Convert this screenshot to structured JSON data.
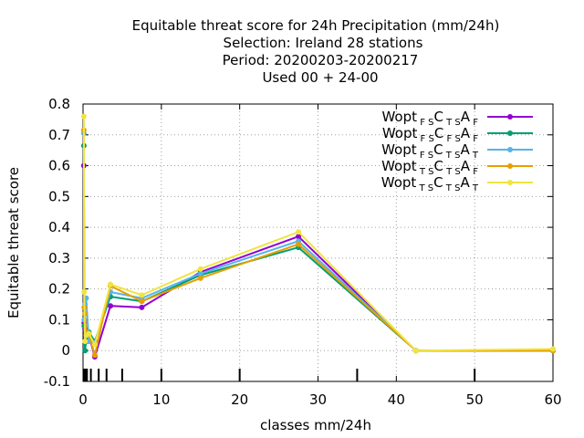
{
  "chart_data": {
    "type": "line",
    "title_lines": [
      "Equitable threat score  for 24h Precipitation (mm/24h)",
      "Selection: Ireland      28 stations",
      "Period: 20200203-20200217",
      "Used  00 + 24-00"
    ],
    "xlabel": "classes mm/24h",
    "ylabel": "Equitable threat score",
    "xlim": [
      0,
      60
    ],
    "ylim": [
      -0.1,
      0.8
    ],
    "xticks": [
      0,
      10,
      20,
      30,
      40,
      50,
      60
    ],
    "yticks": [
      -0.1,
      0,
      0.1,
      0.2,
      0.3,
      0.4,
      0.5,
      0.6,
      0.7,
      0.8
    ],
    "ytick_labels": [
      "-0.1",
      "0",
      "0.1",
      "0.2",
      "0.3",
      "0.4",
      "0.5",
      "0.6",
      "0.7",
      "0.8"
    ],
    "grid": true,
    "legend_position": "top-right",
    "class_marks": [
      0.1,
      0.2,
      0.3,
      0.5,
      1,
      2,
      3,
      5,
      10,
      20,
      35,
      50
    ],
    "series": [
      {
        "name": "Wopt FS CTS AF",
        "legend": {
          "base": "Wopt",
          "parts": [
            [
              "FS",
              "C"
            ],
            [
              "TS",
              "A"
            ],
            [
              "F",
              ""
            ]
          ]
        },
        "color": "#9400d3",
        "marker": "circle",
        "x": [
          0.1,
          0.15,
          0.25,
          0.4,
          0.75,
          1.5,
          3.5,
          7.5,
          15,
          27.5,
          42.5,
          60
        ],
        "y": [
          0.6,
          0.09,
          0.07,
          0.05,
          0.05,
          -0.02,
          0.145,
          0.14,
          0.255,
          0.37,
          0.0,
          0.0
        ]
      },
      {
        "name": "Wopt FS CFS AF",
        "legend": {
          "base": "Wopt",
          "parts": [
            [
              "FS",
              "C"
            ],
            [
              "FS",
              "A"
            ],
            [
              "F",
              ""
            ]
          ]
        },
        "color": "#009e73",
        "marker": "circle",
        "x": [
          0.1,
          0.15,
          0.25,
          0.4,
          0.75,
          1.5,
          3.5,
          7.5,
          15,
          27.5,
          42.5,
          60
        ],
        "y": [
          0.665,
          0.08,
          0.0,
          0.03,
          0.06,
          0.03,
          0.175,
          0.16,
          0.245,
          0.335,
          0.0,
          0.0
        ]
      },
      {
        "name": "Wopt FS CTS AT",
        "legend": {
          "base": "Wopt",
          "parts": [
            [
              "FS",
              "C"
            ],
            [
              "TS",
              "A"
            ],
            [
              "T",
              ""
            ]
          ]
        },
        "color": "#56b4e9",
        "marker": "circle",
        "x": [
          0.1,
          0.15,
          0.25,
          0.4,
          0.75,
          1.5,
          3.5,
          7.5,
          15,
          27.5,
          42.5,
          60
        ],
        "y": [
          0.705,
          0.1,
          0.15,
          0.17,
          0.03,
          0.025,
          0.19,
          0.17,
          0.25,
          0.355,
          0.0,
          0.0
        ]
      },
      {
        "name": "Wopt TS CTS AF",
        "legend": {
          "base": "Wopt",
          "parts": [
            [
              "TS",
              "C"
            ],
            [
              "TS",
              "A"
            ],
            [
              "F",
              ""
            ]
          ]
        },
        "color": "#e69f00",
        "marker": "circle",
        "x": [
          0.1,
          0.15,
          0.25,
          0.4,
          0.75,
          1.5,
          3.5,
          7.5,
          15,
          27.5,
          42.5,
          60
        ],
        "y": [
          0.715,
          0.14,
          0.12,
          0.06,
          0.055,
          -0.015,
          0.21,
          0.16,
          0.235,
          0.345,
          0.0,
          0.0
        ]
      },
      {
        "name": "Wopt TS CTS AT",
        "legend": {
          "base": "Wopt",
          "parts": [
            [
              "TS",
              "C"
            ],
            [
              "TS",
              "A"
            ],
            [
              "T",
              ""
            ]
          ]
        },
        "color": "#f0e442",
        "marker": "circle",
        "x": [
          0.1,
          0.15,
          0.25,
          0.4,
          0.75,
          1.5,
          3.5,
          7.5,
          15,
          27.5,
          42.5,
          60
        ],
        "y": [
          0.76,
          0.19,
          0.03,
          0.05,
          0.055,
          0.02,
          0.215,
          0.18,
          0.265,
          0.385,
          0.0,
          0.005
        ]
      }
    ]
  }
}
